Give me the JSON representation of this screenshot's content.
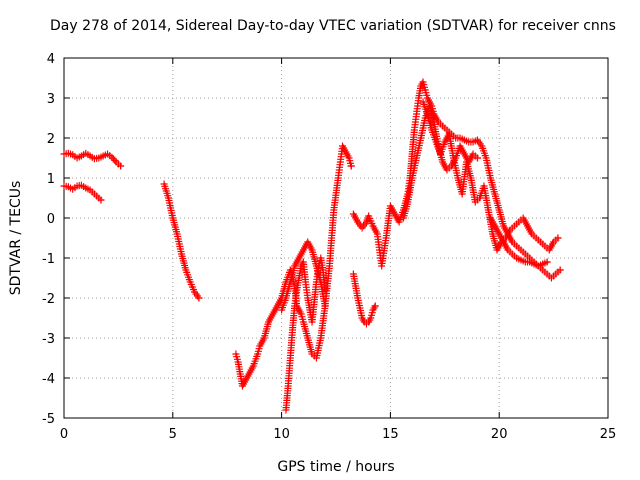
{
  "chart_data": {
    "type": "scatter",
    "title": "Day 278 of 2014, Sidereal Day-to-day VTEC variation (SDTVAR) for receiver cnns",
    "xlabel": "GPS time / hours",
    "ylabel": "SDTVAR / TECUs",
    "xlim": [
      0,
      25
    ],
    "ylim": [
      -5,
      4
    ],
    "xticks": [
      "0",
      "5",
      "10",
      "15",
      "20",
      "25"
    ],
    "yticks": [
      "-5",
      "-4",
      "-3",
      "-2",
      "-1",
      "0",
      "1",
      "2",
      "3",
      "4"
    ],
    "grid": true,
    "marker": "+",
    "color": "#ff0000",
    "series": [
      {
        "name": "arc1",
        "x": [
          0,
          0.2,
          0.4,
          0.6,
          0.8,
          1.0,
          1.2,
          1.4,
          1.6,
          1.8,
          2.0,
          2.2,
          2.4,
          2.6
        ],
        "y": [
          1.6,
          1.62,
          1.58,
          1.5,
          1.55,
          1.62,
          1.55,
          1.48,
          1.5,
          1.55,
          1.6,
          1.52,
          1.4,
          1.3
        ]
      },
      {
        "name": "arc2",
        "x": [
          0,
          0.2,
          0.4,
          0.6,
          0.8,
          1.0,
          1.2,
          1.4,
          1.6,
          1.7
        ],
        "y": [
          0.8,
          0.78,
          0.72,
          0.8,
          0.82,
          0.75,
          0.7,
          0.6,
          0.5,
          0.45
        ]
      },
      {
        "name": "arc3",
        "x": [
          4.6,
          4.8,
          5.0,
          5.2,
          5.4,
          5.6,
          5.8,
          6.0,
          6.2
        ],
        "y": [
          0.85,
          0.5,
          0.0,
          -0.4,
          -0.9,
          -1.3,
          -1.6,
          -1.85,
          -2.0
        ]
      },
      {
        "name": "arc4",
        "x": [
          7.9,
          8.0,
          8.1,
          8.2,
          8.3,
          8.5,
          8.7,
          8.9,
          9.0,
          9.2,
          9.4,
          9.6,
          9.8,
          10.0,
          10.2,
          10.4,
          10.6,
          10.7,
          10.9,
          11.0,
          11.2,
          11.4,
          11.6,
          11.8,
          12.0,
          12.2,
          12.4,
          12.6,
          12.7,
          12.8,
          12.9,
          13.0,
          13.1,
          13.2
        ],
        "y": [
          -3.4,
          -3.6,
          -3.9,
          -4.2,
          -4.1,
          -3.9,
          -3.7,
          -3.4,
          -3.2,
          -3.0,
          -2.6,
          -2.4,
          -2.2,
          -2.0,
          -1.6,
          -1.3,
          -1.7,
          -2.2,
          -2.4,
          -2.6,
          -3.0,
          -3.4,
          -3.5,
          -3.0,
          -2.2,
          -1.2,
          0.2,
          1.0,
          1.4,
          1.8,
          1.7,
          1.6,
          1.5,
          1.3
        ]
      },
      {
        "name": "arc5",
        "x": [
          10.2,
          10.3,
          10.4,
          10.5,
          10.6,
          10.7,
          10.8,
          10.9,
          11.0,
          11.1,
          11.2,
          11.3,
          11.4,
          11.5,
          11.6,
          11.7,
          11.8,
          11.9,
          12.0
        ],
        "y": [
          -4.8,
          -4.2,
          -3.5,
          -2.8,
          -2.2,
          -1.8,
          -1.5,
          -1.2,
          -1.1,
          -1.6,
          -2.0,
          -2.3,
          -2.6,
          -2.1,
          -1.6,
          -1.2,
          -1.0,
          -1.3,
          -1.8
        ]
      },
      {
        "name": "arc6",
        "x": [
          10.0,
          10.2,
          10.4,
          10.6,
          10.8,
          11.0,
          11.2,
          11.4,
          11.6,
          11.8,
          12.0
        ],
        "y": [
          -2.3,
          -2.0,
          -1.6,
          -1.2,
          -1.0,
          -0.8,
          -0.6,
          -0.8,
          -1.2,
          -1.6,
          -2.2
        ]
      },
      {
        "name": "arc7",
        "x": [
          13.3,
          13.5,
          13.7,
          13.8,
          13.9,
          14.0,
          14.1,
          14.2,
          14.3
        ],
        "y": [
          -1.4,
          -2.0,
          -2.5,
          -2.6,
          -2.65,
          -2.6,
          -2.5,
          -2.3,
          -2.2
        ]
      },
      {
        "name": "arc8",
        "x": [
          13.3,
          13.5,
          13.7,
          13.9,
          14.0,
          14.2,
          14.4,
          14.5,
          14.6,
          14.8,
          15.0,
          15.2,
          15.4,
          15.6,
          15.8,
          15.9,
          16.0,
          16.1,
          16.2,
          16.3,
          16.4,
          16.5,
          16.6,
          16.7,
          16.8,
          16.9,
          17.0,
          17.2,
          17.4,
          17.6,
          17.8,
          18.0,
          18.2,
          18.4,
          18.6,
          18.8,
          19.0,
          19.2,
          19.4,
          19.6,
          19.8,
          20.0,
          20.2,
          20.4,
          20.6,
          20.8,
          21.0,
          21.2,
          21.4,
          21.6,
          21.8,
          22.0,
          22.2,
          22.4,
          22.6,
          22.8
        ],
        "y": [
          0.1,
          -0.1,
          -0.25,
          -0.1,
          0.05,
          -0.2,
          -0.4,
          -0.8,
          -1.2,
          -0.5,
          0.3,
          0.1,
          -0.1,
          0.2,
          0.6,
          1.0,
          1.6,
          2.2,
          2.6,
          3.0,
          3.3,
          3.4,
          3.2,
          3.0,
          2.9,
          2.8,
          2.6,
          2.4,
          2.3,
          2.2,
          2.1,
          2.0,
          2.0,
          1.95,
          1.9,
          1.9,
          1.95,
          1.8,
          1.5,
          1.0,
          0.6,
          0.2,
          -0.2,
          -0.4,
          -0.6,
          -0.7,
          -0.8,
          -0.9,
          -1.0,
          -1.1,
          -1.2,
          -1.3,
          -1.4,
          -1.5,
          -1.4,
          -1.3
        ]
      },
      {
        "name": "arc9",
        "x": [
          15.6,
          15.8,
          16.0,
          16.2,
          16.4,
          16.6,
          16.8,
          17.0,
          17.2,
          17.4,
          17.6,
          17.8,
          18.0,
          18.2,
          18.4,
          18.6,
          18.8,
          19.0
        ],
        "y": [
          0.0,
          0.4,
          1.0,
          1.5,
          2.0,
          2.5,
          2.8,
          2.4,
          1.8,
          1.4,
          1.2,
          1.3,
          1.5,
          1.8,
          1.6,
          1.4,
          1.6,
          1.5
        ]
      },
      {
        "name": "arc10",
        "x": [
          16.5,
          16.7,
          16.9,
          17.1,
          17.3,
          17.5,
          17.7,
          17.9,
          18.1,
          18.3,
          18.5,
          18.7,
          18.9,
          19.1,
          19.3,
          19.5,
          19.7,
          19.9,
          20.1,
          20.3,
          20.5,
          20.7,
          20.9,
          21.1,
          21.3,
          21.5,
          21.7,
          21.9,
          22.1,
          22.3,
          22.5,
          22.7
        ],
        "y": [
          2.9,
          2.6,
          2.2,
          1.9,
          1.6,
          1.9,
          2.1,
          1.5,
          1.0,
          0.6,
          1.4,
          1.0,
          0.4,
          0.5,
          0.8,
          0.2,
          -0.4,
          -0.8,
          -0.6,
          -0.5,
          -0.3,
          -0.2,
          -0.1,
          0.0,
          -0.2,
          -0.4,
          -0.5,
          -0.6,
          -0.7,
          -0.8,
          -0.6,
          -0.5
        ]
      },
      {
        "name": "arc11",
        "x": [
          19.6,
          19.8,
          20.0,
          20.2,
          20.4,
          20.6,
          20.8,
          21.0,
          21.2,
          21.4,
          21.6,
          21.8,
          22.0,
          22.2
        ],
        "y": [
          0.0,
          -0.2,
          -0.4,
          -0.6,
          -0.8,
          -0.9,
          -1.0,
          -1.05,
          -1.1,
          -1.1,
          -1.15,
          -1.2,
          -1.15,
          -1.1
        ]
      }
    ]
  }
}
